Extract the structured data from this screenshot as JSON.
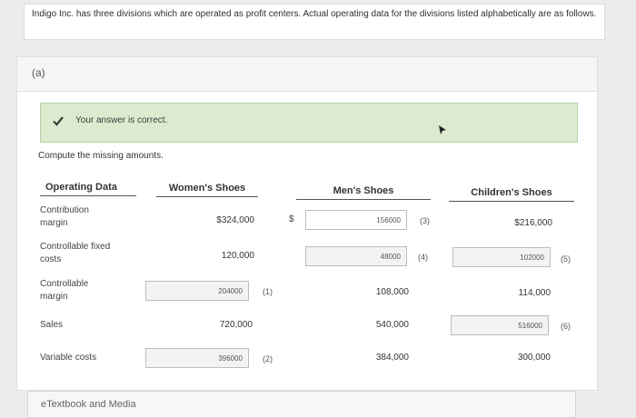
{
  "intro": "Indigo Inc. has three divisions which are operated as profit centers. Actual operating data for the divisions listed alphabetically are as follows.",
  "part": "(a)",
  "banner": {
    "text": "Your answer is correct."
  },
  "instruction": "Compute the missing amounts.",
  "headers": {
    "label": "Operating Data",
    "women": "Women's Shoes",
    "men": "Men's Shoes",
    "children": "Children's Shoes"
  },
  "rows": [
    {
      "label_line1": "Contribution",
      "label_line2": "margin",
      "women": "$324,000",
      "men_currency": "$",
      "men": "156000",
      "men_note": "(3)",
      "children": "$216,000"
    },
    {
      "label_line1": "Controllable fixed",
      "label_line2": "costs",
      "women": "120,000",
      "men": "48000",
      "men_note": "(4)",
      "children": "102000",
      "children_note": "(5)"
    },
    {
      "label_line1": "Controllable",
      "label_line2": "margin",
      "women": "204000",
      "women_note": "(1)",
      "men": "108,000",
      "children": "114,000"
    },
    {
      "label_line1": "Sales",
      "women": "720,000",
      "men": "540,000",
      "children": "516000",
      "children_note": "(6)"
    },
    {
      "label_line1": "Variable costs",
      "women": "396000",
      "women_note": "(2)",
      "men": "384,000",
      "children": "300,000"
    }
  ],
  "footer": {
    "etextbook": "eTextbook and Media"
  }
}
